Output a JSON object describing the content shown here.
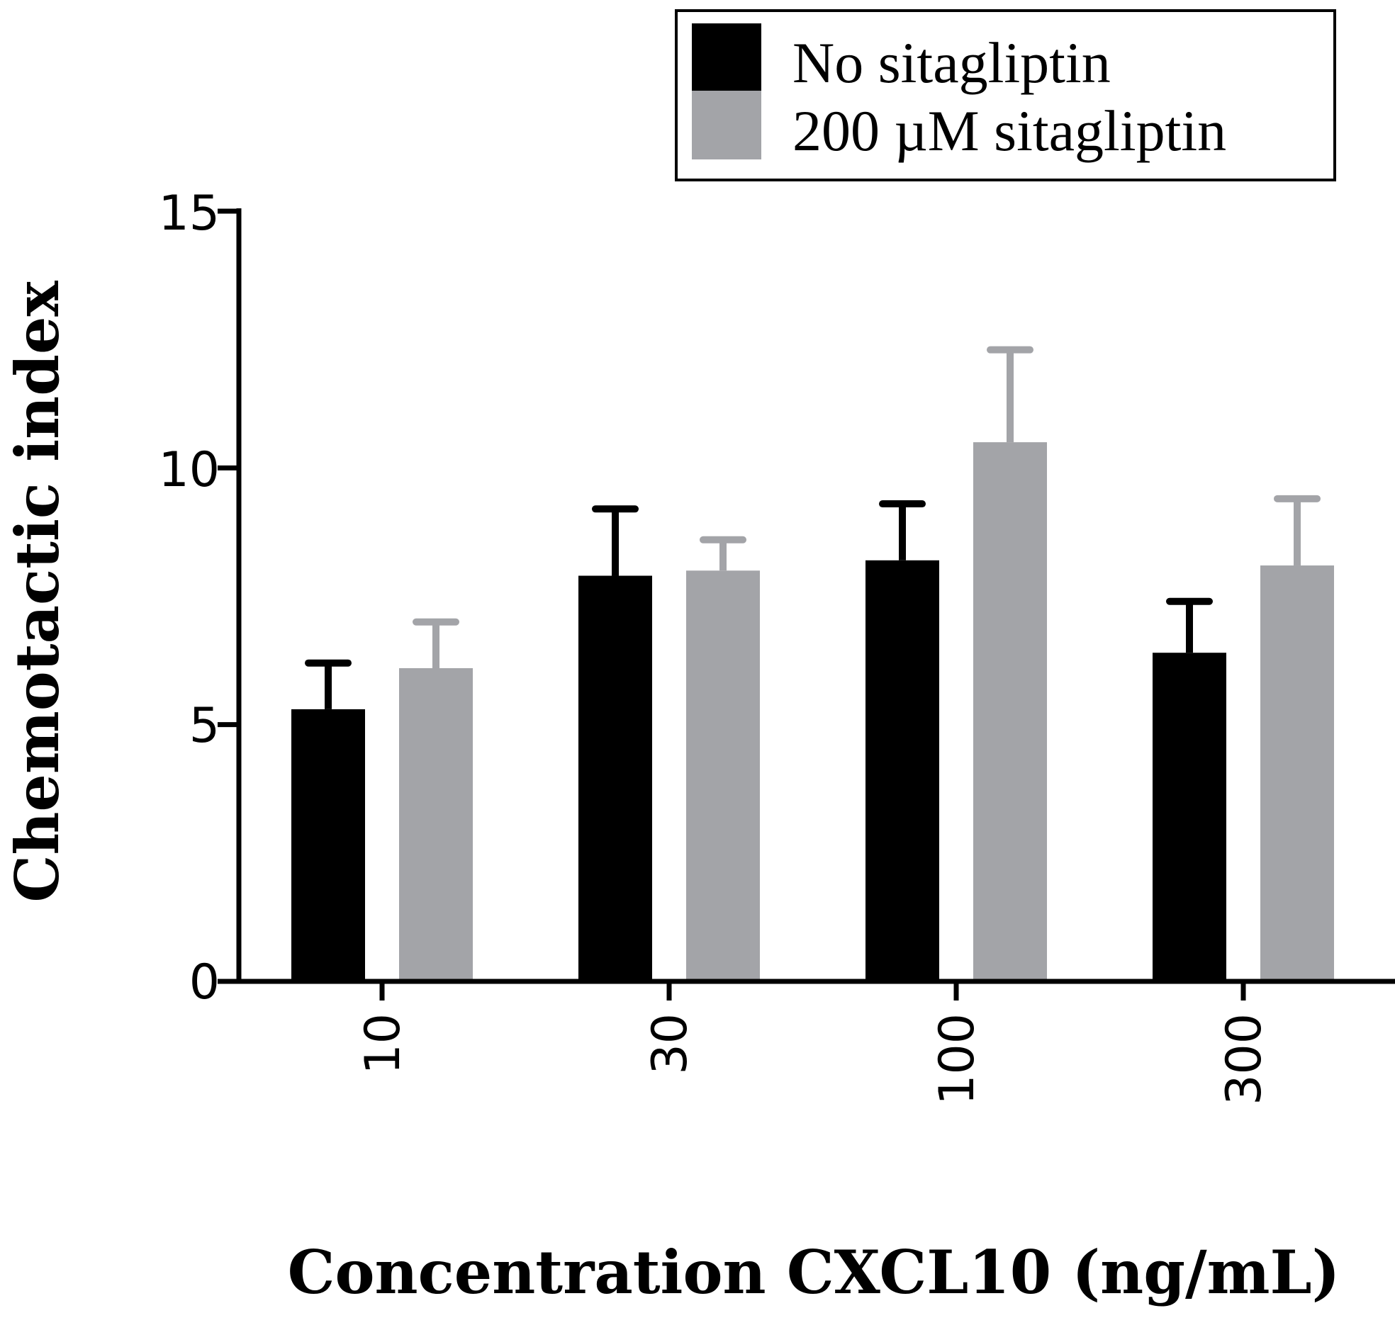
{
  "chart_data": {
    "type": "bar",
    "categories": [
      "10",
      "30",
      "100",
      "300"
    ],
    "series": [
      {
        "name": "No sitagliptin",
        "color": "#000000",
        "values": [
          5.3,
          7.9,
          8.2,
          6.4
        ],
        "errors": [
          0.9,
          1.3,
          1.1,
          1.0
        ]
      },
      {
        "name": "200 µM sitagliptin",
        "color": "#a3a4a8",
        "values": [
          6.1,
          8.0,
          10.5,
          8.1
        ],
        "errors": [
          0.9,
          0.6,
          1.8,
          1.3
        ]
      }
    ],
    "title": "",
    "xlabel": "Concentration CXCL10 (ng/mL)",
    "ylabel": "Chemotactic index",
    "ylim": [
      0,
      15
    ],
    "yticks": [
      0,
      5,
      10,
      15
    ],
    "legend_position": "top-right"
  }
}
